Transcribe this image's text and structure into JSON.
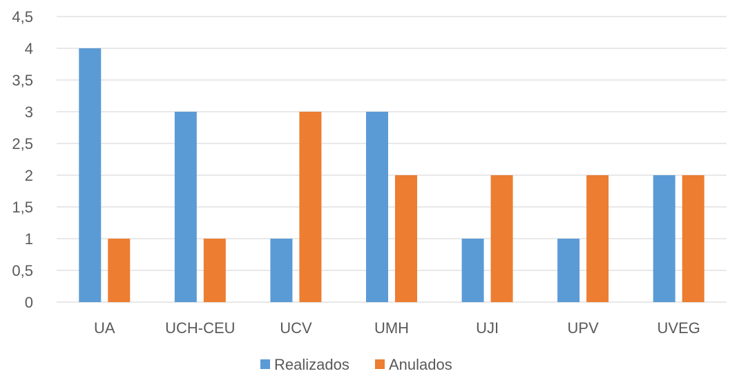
{
  "chart_data": {
    "type": "bar",
    "categories": [
      "UA",
      "UCH-CEU",
      "UCV",
      "UMH",
      "UJI",
      "UPV",
      "UVEG"
    ],
    "series": [
      {
        "name": "Realizados",
        "color": "#5B9BD5",
        "values": [
          4,
          3,
          1,
          3,
          1,
          1,
          2
        ]
      },
      {
        "name": "Anulados",
        "color": "#ED7D31",
        "values": [
          1,
          1,
          3,
          2,
          2,
          2,
          2
        ]
      }
    ],
    "y_ticks": [
      "0",
      "0,5",
      "1",
      "1,5",
      "2",
      "2,5",
      "3",
      "3,5",
      "4",
      "4,5"
    ],
    "ylim": [
      0,
      4.5
    ],
    "grid": true,
    "gridline_color": "#D9D9D9",
    "legend_position": "bottom",
    "title": "",
    "xlabel": "",
    "ylabel": ""
  }
}
